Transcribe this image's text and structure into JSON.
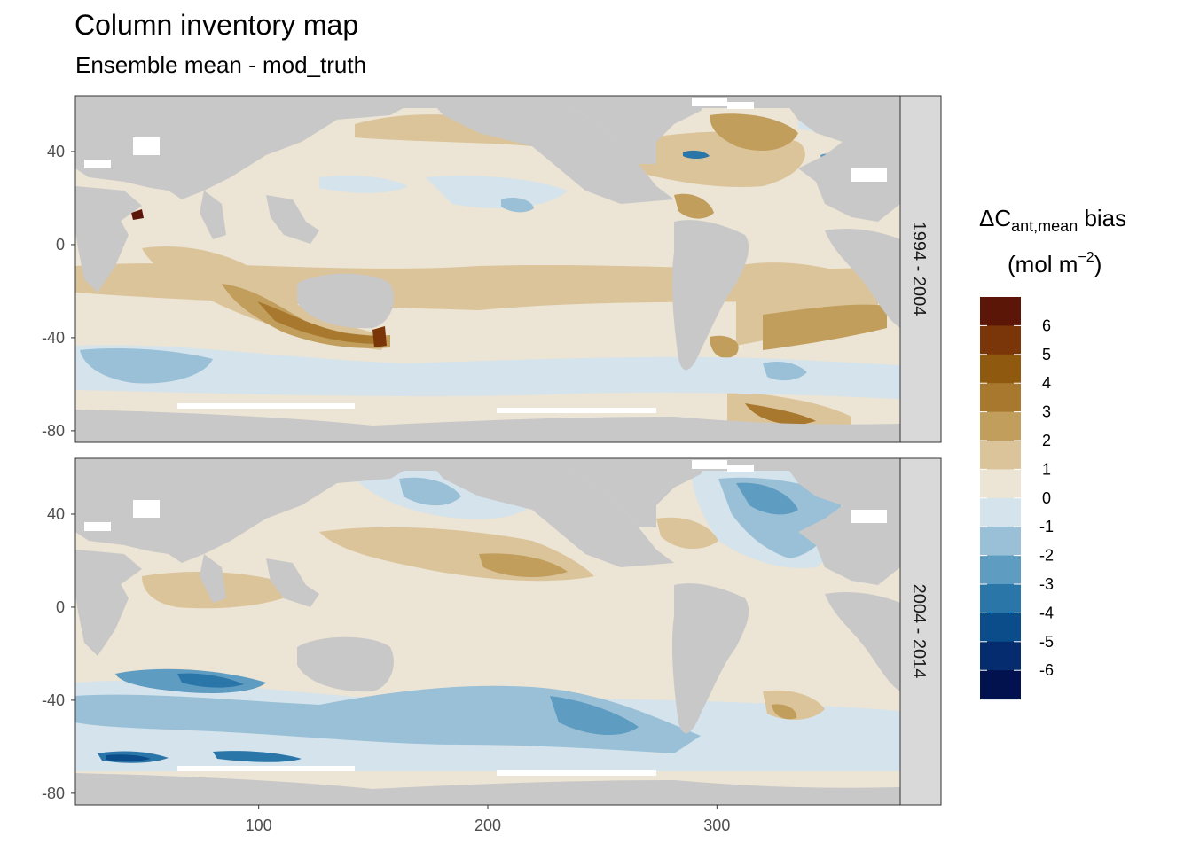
{
  "header": {
    "title": "Column inventory map",
    "subtitle": "Ensemble mean - mod_truth"
  },
  "chart_data": {
    "type": "heatmap",
    "title": "Column inventory map",
    "subtitle": "Ensemble mean - mod_truth",
    "xlabel": "",
    "ylabel": "",
    "xlim": [
      20,
      380
    ],
    "ylim": [
      -85,
      64
    ],
    "x_ticks": [
      100,
      200,
      300
    ],
    "y_ticks": [
      40,
      0,
      -40,
      -80
    ],
    "grid": false,
    "facets": [
      "1994 - 2004",
      "2004 - 2014"
    ],
    "legend": {
      "title_main": "ΔC",
      "title_sub": "ant,mean",
      "title_suffix": " bias",
      "unit_prefix": "(mol m",
      "unit_sup": "−2",
      "unit_suffix": ")",
      "placement": "right",
      "bins": [
        {
          "label": "6",
          "color": "#5c1608"
        },
        {
          "label": "5",
          "color": "#7a3608"
        },
        {
          "label": "4",
          "color": "#8f5a0f"
        },
        {
          "label": "3",
          "color": "#a8782e"
        },
        {
          "label": "2",
          "color": "#c19e5c"
        },
        {
          "label": "1",
          "color": "#dbc49a"
        },
        {
          "label": "0",
          "color": "#ece4d4"
        },
        {
          "label": "-1",
          "color": "#d4e3ec"
        },
        {
          "label": "-2",
          "color": "#99c0d6"
        },
        {
          "label": "-3",
          "color": "#5e9cc2"
        },
        {
          "label": "-4",
          "color": "#2b76a8"
        },
        {
          "label": "-5",
          "color": "#0a4d8a"
        },
        {
          "label": "-6",
          "color": "#052c6e"
        },
        {
          "label": "",
          "color": "#02124f"
        }
      ]
    },
    "colors": {
      "land": "#c8c8c8",
      "strip": "#d9d9d9",
      "frame": "#333333"
    }
  }
}
